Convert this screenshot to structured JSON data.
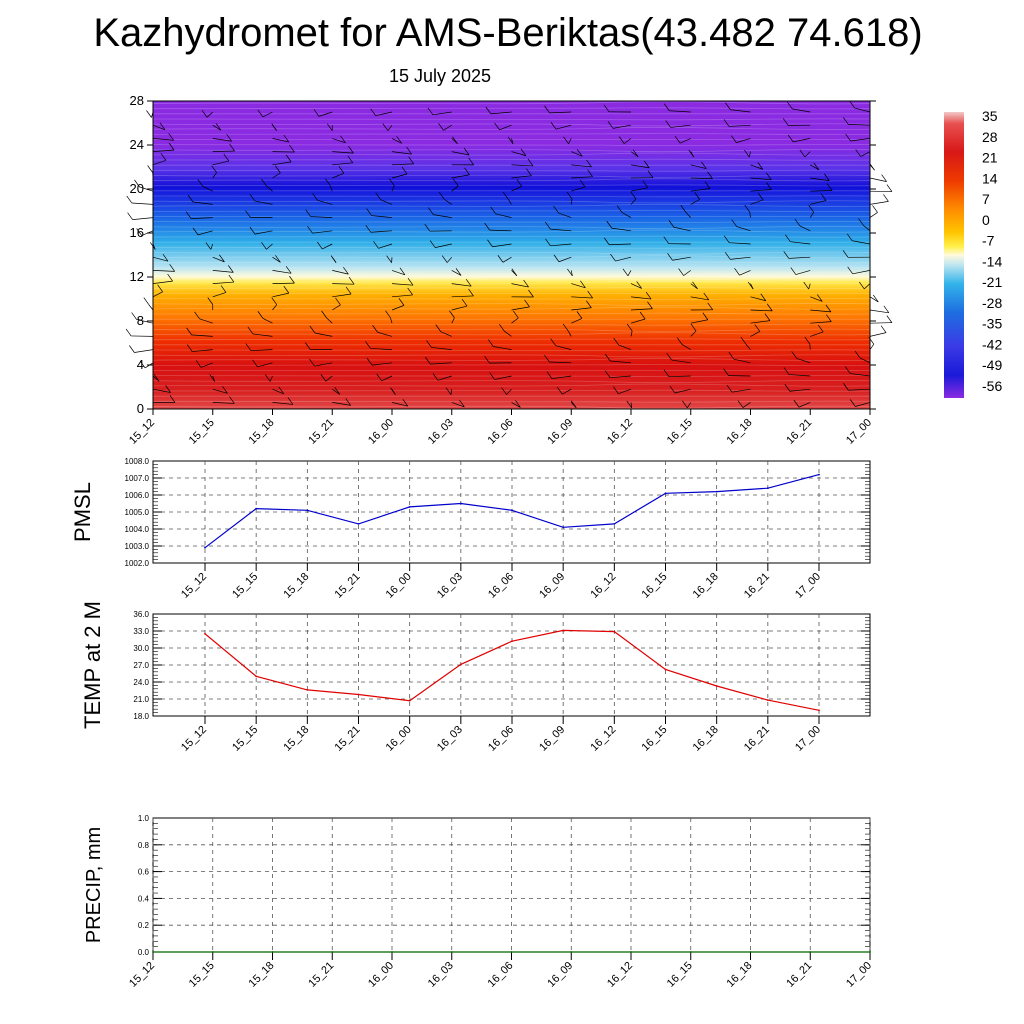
{
  "title": "Kazhydromet for AMS-Beriktas(43.482 74.618)",
  "subtitle": "15 July 2025",
  "time_labels": [
    "15_12",
    "15_15",
    "15_18",
    "15_21",
    "16_00",
    "16_03",
    "16_06",
    "16_09",
    "16_12",
    "16_15",
    "16_18",
    "16_21",
    "17_00"
  ],
  "colors": {
    "pmsl_line": "#0000cc",
    "temp_line": "#e00000",
    "precip_line": "#006400",
    "grid": "#555555"
  },
  "chart_data": [
    {
      "type": "heatmap",
      "description_key": "vertical temperature cross-section with wind barbs",
      "x": [
        "15_12",
        "15_15",
        "15_18",
        "15_21",
        "16_00",
        "16_03",
        "16_06",
        "16_09",
        "16_12",
        "16_15",
        "16_18",
        "16_21",
        "17_00"
      ],
      "yticks": [
        "0",
        "4",
        "8",
        "12",
        "16",
        "20",
        "24",
        "28"
      ],
      "ylim": [
        0,
        28
      ],
      "levels": [
        0,
        2,
        4,
        6,
        8,
        10,
        12,
        14,
        16,
        18,
        20,
        22,
        24,
        26,
        28
      ],
      "temperature_by_level": [
        33,
        30,
        26,
        21,
        14,
        6,
        -5,
        -15,
        -28,
        -40,
        -53,
        -58,
        -52,
        -50,
        -50
      ],
      "colorbar": {
        "labels": [
          "35",
          "28",
          "21",
          "14",
          "7",
          "0",
          "-7",
          "-14",
          "-21",
          "-28",
          "-35",
          "-42",
          "-49",
          "-56"
        ],
        "range": [
          -60,
          36
        ]
      }
    },
    {
      "type": "line",
      "ylabel": "PMSL",
      "x": [
        "15_12",
        "15_15",
        "15_18",
        "15_21",
        "16_00",
        "16_03",
        "16_06",
        "16_09",
        "16_12",
        "16_15",
        "16_18",
        "16_21",
        "17_00"
      ],
      "yticks": [
        "1002.0",
        "1003.0",
        "1004.0",
        "1005.0",
        "1006.0",
        "1007.0",
        "1008.0"
      ],
      "ylim": [
        1002,
        1008
      ],
      "series": [
        {
          "values": [
            1002.9,
            1005.2,
            1005.1,
            1004.3,
            1005.3,
            1005.5,
            1005.1,
            1004.1,
            1004.3,
            1006.1,
            1006.2,
            1006.4,
            1007.2
          ]
        }
      ]
    },
    {
      "type": "line",
      "ylabel": "TEMP at 2 M",
      "x": [
        "15_12",
        "15_15",
        "15_18",
        "15_21",
        "16_00",
        "16_03",
        "16_06",
        "16_09",
        "16_12",
        "16_15",
        "16_18",
        "16_21",
        "17_00"
      ],
      "yticks": [
        "18.0",
        "21.0",
        "24.0",
        "27.0",
        "30.0",
        "33.0",
        "36.0"
      ],
      "ylim": [
        18,
        36
      ],
      "series": [
        {
          "values": [
            32.5,
            25.0,
            22.6,
            21.8,
            20.7,
            27.1,
            31.2,
            33.1,
            32.9,
            26.2,
            23.3,
            20.8,
            19.0
          ]
        }
      ]
    },
    {
      "type": "line",
      "ylabel": "PRECIP, mm",
      "x": [
        "15_12",
        "15_15",
        "15_18",
        "15_21",
        "16_00",
        "16_03",
        "16_06",
        "16_09",
        "16_12",
        "16_15",
        "16_18",
        "16_21",
        "17_00"
      ],
      "yticks": [
        "0.0",
        "0.2",
        "0.4",
        "0.6",
        "0.8",
        "1.0"
      ],
      "ylim": [
        0,
        1
      ],
      "series": [
        {
          "values": [
            0,
            0,
            0,
            0,
            0,
            0,
            0,
            0,
            0,
            0,
            0,
            0,
            0
          ]
        }
      ]
    }
  ]
}
